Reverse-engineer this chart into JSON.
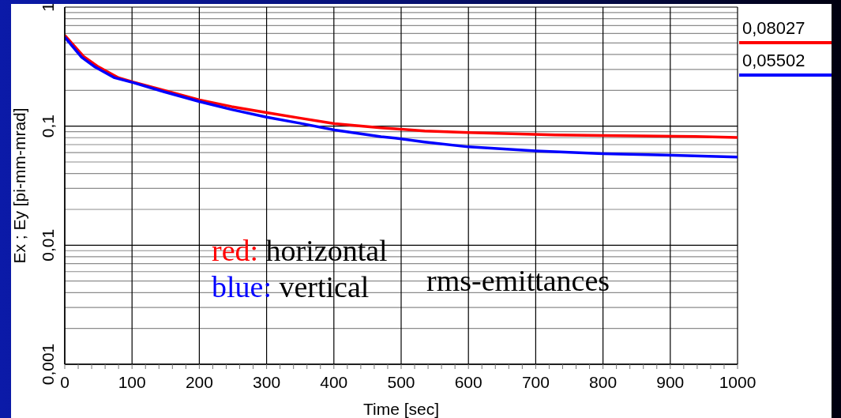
{
  "chart_data": {
    "type": "line",
    "xlabel": "Time [sec]",
    "ylabel": "Ex ; Ey [pi-mm-mrad]",
    "annotations": [
      "red: horizontal",
      "blue: vertical",
      "rms-emittances"
    ],
    "series": [
      {
        "name": "0,08027",
        "color": "#ff0000",
        "x": [
          0,
          28,
          50,
          80,
          102,
          147,
          200,
          248,
          300,
          349,
          401,
          470,
          491,
          535,
          600,
          729,
          937,
          1000
        ],
        "values": [
          0.58,
          0.385,
          0.315,
          0.255,
          0.234,
          0.2,
          0.166,
          0.146,
          0.13,
          0.117,
          0.105,
          0.097,
          0.095,
          0.091,
          0.0885,
          0.0843,
          0.0819,
          0.0803
        ]
      },
      {
        "name": "0,05502",
        "color": "#0000ff",
        "x": [
          0,
          25,
          45,
          74,
          102,
          147,
          200,
          248,
          300,
          349,
          401,
          470,
          491,
          535,
          600,
          700,
          800,
          893,
          1000
        ],
        "values": [
          0.56,
          0.38,
          0.314,
          0.255,
          0.232,
          0.195,
          0.161,
          0.138,
          0.119,
          0.106,
          0.093,
          0.0815,
          0.0794,
          0.0736,
          0.067,
          0.062,
          0.0587,
          0.0571,
          0.055
        ]
      }
    ],
    "xlim": [
      0,
      1000
    ],
    "xticks": [
      0,
      {
        "value": 20,
        "label": null
      },
      {
        "value": 40,
        "label": null
      },
      {
        "value": 60,
        "label": null
      },
      {
        "value": 80,
        "label": null
      },
      100,
      {
        "value": 120,
        "label": null
      },
      {
        "value": 140,
        "label": null
      },
      {
        "value": 160,
        "label": null
      },
      {
        "value": 180,
        "label": null
      },
      200,
      {
        "value": 220,
        "label": null
      },
      {
        "value": 240,
        "label": null
      },
      {
        "value": 260,
        "label": null
      },
      {
        "value": 280,
        "label": null
      },
      300,
      {
        "value": 320,
        "label": null
      },
      {
        "value": 340,
        "label": null
      },
      {
        "value": 360,
        "label": null
      },
      {
        "value": 380,
        "label": null
      },
      400,
      {
        "value": 420,
        "label": null
      },
      {
        "value": 440,
        "label": null
      },
      {
        "value": 460,
        "label": null
      },
      {
        "value": 480,
        "label": null
      },
      500,
      {
        "value": 520,
        "label": null
      },
      {
        "value": 540,
        "label": null
      },
      {
        "value": 560,
        "label": null
      },
      {
        "value": 580,
        "label": null
      },
      600,
      {
        "value": 620,
        "label": null
      },
      {
        "value": 640,
        "label": null
      },
      {
        "value": 660,
        "label": null
      },
      {
        "value": 680,
        "label": null
      },
      700,
      {
        "value": 720,
        "label": null
      },
      {
        "value": 740,
        "label": null
      },
      {
        "value": 760,
        "label": null
      },
      {
        "value": 780,
        "label": null
      },
      800,
      {
        "value": 820,
        "label": null
      },
      {
        "value": 840,
        "label": null
      },
      {
        "value": 860,
        "label": null
      },
      {
        "value": 880,
        "label": null
      },
      900,
      {
        "value": 920,
        "label": null
      },
      {
        "value": 940,
        "label": null
      },
      {
        "value": 960,
        "label": null
      },
      {
        "value": 980,
        "label": null
      },
      1000
    ],
    "ylim": [
      0.001,
      1
    ],
    "yticks": [
      {
        "value": 0.001,
        "label": "0,001"
      },
      {
        "value": 0.002,
        "label": null
      },
      {
        "value": 0.003,
        "label": null
      },
      {
        "value": 0.004,
        "label": null
      },
      {
        "value": 0.005,
        "label": null
      },
      {
        "value": 0.006,
        "label": null
      },
      {
        "value": 0.007,
        "label": null
      },
      {
        "value": 0.008,
        "label": null
      },
      {
        "value": 0.009,
        "label": null
      },
      {
        "value": 0.01,
        "label": "0,01"
      },
      {
        "value": 0.02,
        "label": null
      },
      {
        "value": 0.03,
        "label": null
      },
      {
        "value": 0.04,
        "label": null
      },
      {
        "value": 0.05,
        "label": null
      },
      {
        "value": 0.06,
        "label": null
      },
      {
        "value": 0.07,
        "label": null
      },
      {
        "value": 0.08,
        "label": null
      },
      {
        "value": 0.09,
        "label": null
      },
      {
        "value": 0.1,
        "label": "0,1"
      },
      {
        "value": 0.2,
        "label": null
      },
      {
        "value": 0.3,
        "label": null
      },
      {
        "value": 0.4,
        "label": null
      },
      {
        "value": 0.5,
        "label": null
      },
      {
        "value": 0.6,
        "label": null
      },
      {
        "value": 0.7,
        "label": null
      },
      {
        "value": 0.8,
        "label": null
      },
      {
        "value": 0.9,
        "label": null
      },
      1
    ],
    "log": "y",
    "grid": true,
    "legend": "right",
    "marker": "none",
    "line_style": "solid"
  }
}
